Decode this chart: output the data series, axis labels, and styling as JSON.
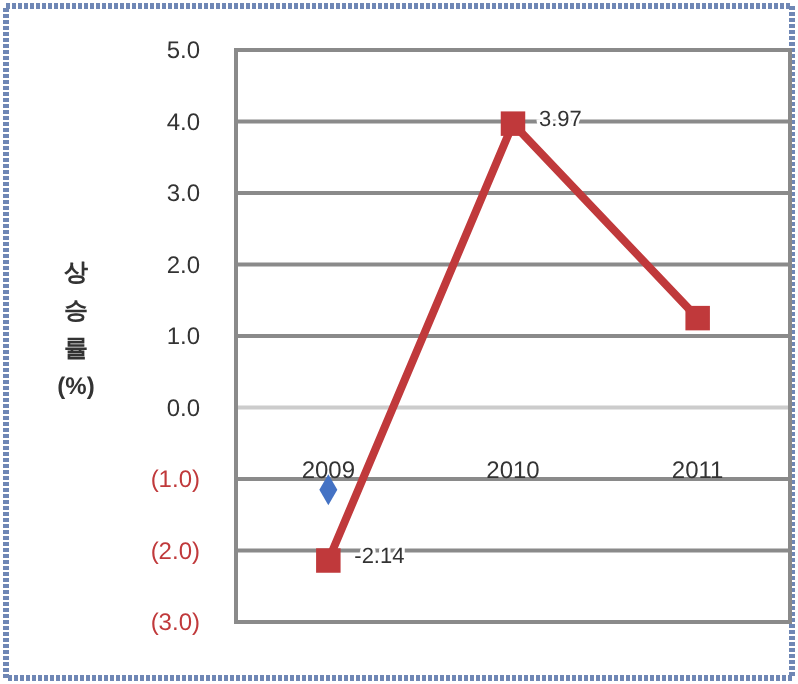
{
  "chart_data": {
    "type": "line",
    "ylabel": "상승률 (%)",
    "categories": [
      "2009",
      "2010",
      "2011"
    ],
    "series": [
      {
        "color": "#c0393b",
        "values": [
          -2.14,
          3.97,
          1.25
        ],
        "value_labels": [
          "-2.14",
          "3.97",
          null
        ],
        "marker": "square"
      },
      {
        "type": "scatter",
        "color": "#4472c4",
        "values": [
          -1.15,
          null,
          null
        ],
        "marker": "diamond"
      }
    ],
    "ylim": [
      -3,
      5
    ],
    "yticks": [
      {
        "value": -3,
        "label": "(3.0)"
      },
      {
        "value": -2,
        "label": "(2.0)"
      },
      {
        "value": -1,
        "label": "(1.0)"
      },
      {
        "value": 0,
        "label": "0.0"
      },
      {
        "value": 1,
        "label": "1.0"
      },
      {
        "value": 2,
        "label": "2.0"
      },
      {
        "value": 3,
        "label": "3.0"
      },
      {
        "value": 4,
        "label": "4.0"
      },
      {
        "value": 5,
        "label": "5.0"
      }
    ],
    "grid": "y"
  }
}
